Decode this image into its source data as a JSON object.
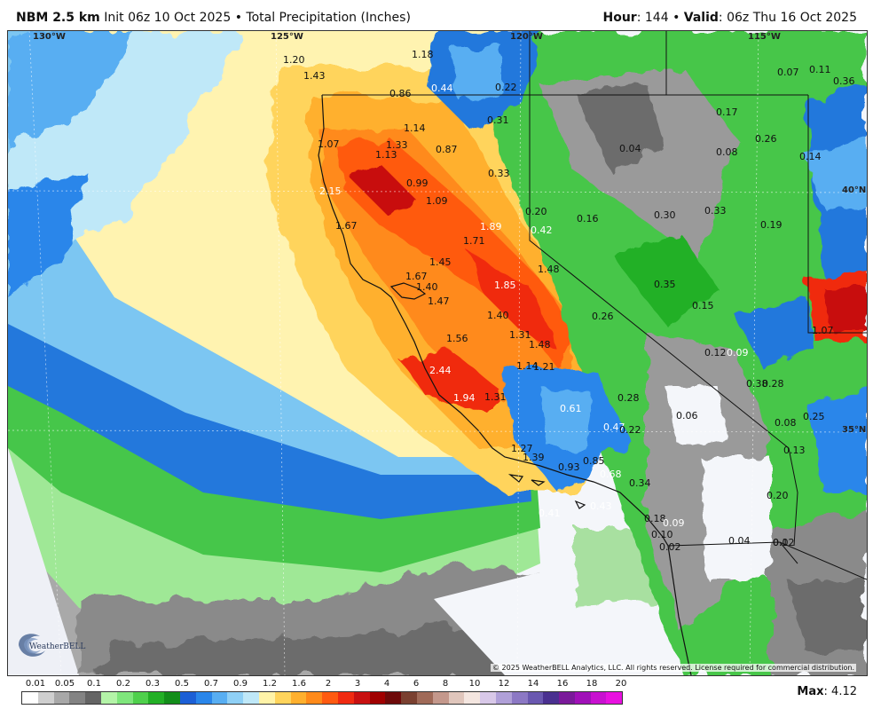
{
  "header": {
    "model": "NBM 2.5 km",
    "init": "Init 06z 10 Oct 2025",
    "separator": "•",
    "product": "Total Precipitation (Inches)",
    "hour_label": "Hour",
    "hour_value": ": 144",
    "valid_label": "Valid",
    "valid_value": ": 06z Thu 16 Oct 2025"
  },
  "graticule": {
    "lon_labels": [
      "130°W",
      "125°W",
      "120°W",
      "115°W"
    ],
    "lat_labels": [
      "40°N",
      "35°N"
    ]
  },
  "precip_points": [
    {
      "v": "1.20",
      "tone": "dark"
    },
    {
      "v": "1.43",
      "tone": "dark"
    },
    {
      "v": "1.18",
      "tone": "dark"
    },
    {
      "v": "0.86",
      "tone": "dark"
    },
    {
      "v": "0.44",
      "tone": "light"
    },
    {
      "v": "0.22",
      "tone": "dark"
    },
    {
      "v": "0.31",
      "tone": "dark"
    },
    {
      "v": "1.14",
      "tone": "dark"
    },
    {
      "v": "1.07",
      "tone": "dark"
    },
    {
      "v": "1.33",
      "tone": "dark"
    },
    {
      "v": "1.13",
      "tone": "dark"
    },
    {
      "v": "0.87",
      "tone": "dark"
    },
    {
      "v": "0.33",
      "tone": "dark"
    },
    {
      "v": "0.99",
      "tone": "dark"
    },
    {
      "v": "2.15",
      "tone": "light"
    },
    {
      "v": "1.09",
      "tone": "dark"
    },
    {
      "v": "0.20",
      "tone": "dark"
    },
    {
      "v": "0.42",
      "tone": "light"
    },
    {
      "v": "1.89",
      "tone": "light"
    },
    {
      "v": "1.67",
      "tone": "dark"
    },
    {
      "v": "1.71",
      "tone": "dark"
    },
    {
      "v": "1.45",
      "tone": "dark"
    },
    {
      "v": "1.48",
      "tone": "dark"
    },
    {
      "v": "1.67",
      "tone": "dark"
    },
    {
      "v": "1.40",
      "tone": "dark"
    },
    {
      "v": "1.85",
      "tone": "light"
    },
    {
      "v": "1.47",
      "tone": "dark"
    },
    {
      "v": "1.40",
      "tone": "dark"
    },
    {
      "v": "0.26",
      "tone": "dark"
    },
    {
      "v": "1.56",
      "tone": "dark"
    },
    {
      "v": "1.31",
      "tone": "dark"
    },
    {
      "v": "1.48",
      "tone": "dark"
    },
    {
      "v": "1.14",
      "tone": "dark"
    },
    {
      "v": "1.21",
      "tone": "dark"
    },
    {
      "v": "2.44",
      "tone": "light"
    },
    {
      "v": "1.94",
      "tone": "light"
    },
    {
      "v": "1.31",
      "tone": "dark"
    },
    {
      "v": "0.28",
      "tone": "dark"
    },
    {
      "v": "0.61",
      "tone": "light"
    },
    {
      "v": "0.47",
      "tone": "light"
    },
    {
      "v": "0.22",
      "tone": "dark"
    },
    {
      "v": "1.27",
      "tone": "dark"
    },
    {
      "v": "1.39",
      "tone": "dark"
    },
    {
      "v": "0.93",
      "tone": "dark"
    },
    {
      "v": "0.85",
      "tone": "dark"
    },
    {
      "v": "0.68",
      "tone": "light"
    },
    {
      "v": "0.34",
      "tone": "dark"
    },
    {
      "v": "0.41",
      "tone": "light"
    },
    {
      "v": "0.43",
      "tone": "light"
    },
    {
      "v": "0.18",
      "tone": "dark"
    },
    {
      "v": "0.10",
      "tone": "dark"
    },
    {
      "v": "0.02",
      "tone": "dark"
    },
    {
      "v": "0.04",
      "tone": "dark"
    },
    {
      "v": "0.02",
      "tone": "dark"
    },
    {
      "v": "0.11",
      "tone": "dark"
    },
    {
      "v": "0.07",
      "tone": "dark"
    },
    {
      "v": "0.36",
      "tone": "dark"
    },
    {
      "v": "0.17",
      "tone": "dark"
    },
    {
      "v": "0.04",
      "tone": "dark"
    },
    {
      "v": "0.08",
      "tone": "dark"
    },
    {
      "v": "0.26",
      "tone": "dark"
    },
    {
      "v": "0.14",
      "tone": "dark"
    },
    {
      "v": "0.16",
      "tone": "dark"
    },
    {
      "v": "0.30",
      "tone": "dark"
    },
    {
      "v": "0.33",
      "tone": "dark"
    },
    {
      "v": "0.19",
      "tone": "dark"
    },
    {
      "v": "0.35",
      "tone": "dark"
    },
    {
      "v": "0.15",
      "tone": "dark"
    },
    {
      "v": "1.07",
      "tone": "dark"
    },
    {
      "v": "0.12",
      "tone": "dark"
    },
    {
      "v": "0.09",
      "tone": "light"
    },
    {
      "v": "0.38",
      "tone": "dark"
    },
    {
      "v": "0.28",
      "tone": "dark"
    },
    {
      "v": "0.06",
      "tone": "dark"
    },
    {
      "v": "0.08",
      "tone": "dark"
    },
    {
      "v": "0.25",
      "tone": "dark"
    },
    {
      "v": "0.13",
      "tone": "dark"
    },
    {
      "v": "0.20",
      "tone": "dark"
    },
    {
      "v": "0.09",
      "tone": "light"
    },
    {
      "v": "0.1",
      "tone": "dark"
    }
  ],
  "copyright": "© 2025 WeatherBELL Analytics, LLC. All rights reserved. License required for commercial distribution.",
  "logo_text": "WeatherBELL",
  "legend": {
    "labels": [
      "0.01",
      "0.05",
      "0.1",
      "0.2",
      "0.3",
      "0.5",
      "0.7",
      "0.9",
      "1.2",
      "1.6",
      "2",
      "3",
      "4",
      "6",
      "8",
      "10",
      "12",
      "14",
      "16",
      "18",
      "20"
    ],
    "colors": [
      "#ffffff",
      "#cfcfcf",
      "#a8a8a8",
      "#838383",
      "#646464",
      "#b4f4a8",
      "#7fe67c",
      "#4fd04c",
      "#23b026",
      "#138e1a",
      "#1c5fd6",
      "#2a86ea",
      "#58aef2",
      "#8fd0f6",
      "#bfe8f8",
      "#fff3a8",
      "#ffd45c",
      "#ffb02e",
      "#ff8a1a",
      "#ff5a10",
      "#f02a10",
      "#c81010",
      "#a00000",
      "#6e0a0a",
      "#7a4030",
      "#a06a58",
      "#c4988c",
      "#e0c6bc",
      "#f4e6e0",
      "#d8c8e8",
      "#b0a0d8",
      "#8c78c4",
      "#6a58b0",
      "#4a3090",
      "#7a1a9a",
      "#a010b8",
      "#c810d0",
      "#e810e0"
    ]
  },
  "max": {
    "label": "Max",
    "value": ": 4.12"
  }
}
